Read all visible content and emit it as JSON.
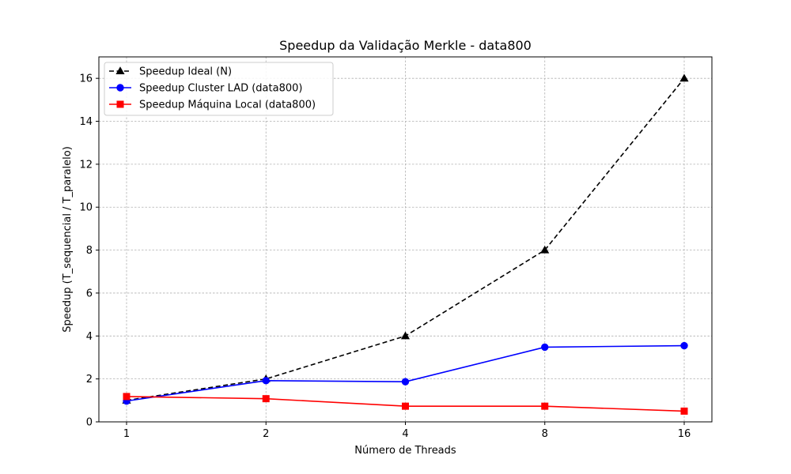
{
  "chart_data": {
    "type": "line",
    "title": "Speedup da Validação Merkle - data800",
    "xlabel": "Número de Threads",
    "ylabel": "Speedup (T_sequencial / T_paralelo)",
    "x": [
      1,
      2,
      4,
      8,
      16
    ],
    "x_tick_labels": [
      "1",
      "2",
      "4",
      "8",
      "16"
    ],
    "x_scale": "log2",
    "ylim": [
      0,
      17
    ],
    "y_ticks": [
      0,
      2,
      4,
      6,
      8,
      10,
      12,
      14,
      16
    ],
    "grid": true,
    "legend_position": "top-left",
    "series": [
      {
        "name": "Speedup Ideal (N)",
        "values": [
          1,
          2,
          4,
          8,
          16
        ],
        "color": "#000000",
        "line_style": "dashed",
        "marker": "triangle"
      },
      {
        "name": "Speedup Cluster LAD (data800)",
        "values": [
          0.97,
          1.92,
          1.87,
          3.48,
          3.55
        ],
        "color": "#0000ff",
        "line_style": "solid",
        "marker": "circle"
      },
      {
        "name": "Speedup Máquina Local (data800)",
        "values": [
          1.18,
          1.08,
          0.73,
          0.73,
          0.5
        ],
        "color": "#ff0000",
        "line_style": "solid",
        "marker": "square"
      }
    ]
  }
}
